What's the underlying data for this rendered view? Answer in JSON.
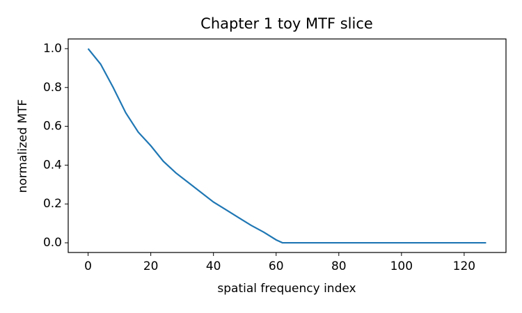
{
  "chart_data": {
    "type": "line",
    "title": "Chapter 1 toy MTF slice",
    "xlabel": "spatial frequency index",
    "ylabel": "normalized MTF",
    "x": [
      0,
      4,
      8,
      12,
      16,
      20,
      24,
      28,
      32,
      36,
      40,
      44,
      48,
      52,
      56,
      60,
      62,
      127
    ],
    "series": [
      {
        "name": "MTF",
        "color": "#1f77b4",
        "values": [
          1.0,
          0.92,
          0.8,
          0.67,
          0.57,
          0.5,
          0.42,
          0.36,
          0.31,
          0.26,
          0.21,
          0.17,
          0.13,
          0.09,
          0.055,
          0.015,
          0.0,
          0.0
        ]
      }
    ],
    "xlim": [
      -6.35,
      133.35
    ],
    "ylim": [
      -0.05,
      1.05
    ],
    "xticks": [
      0,
      20,
      40,
      60,
      80,
      100,
      120
    ],
    "yticks": [
      {
        "value": 0,
        "label": "0.0"
      },
      {
        "value": 0.2,
        "label": "0.2"
      },
      {
        "value": 0.4,
        "label": "0.4"
      },
      {
        "value": 0.6,
        "label": "0.6"
      },
      {
        "value": 0.8,
        "label": "0.8"
      },
      {
        "value": 1.0,
        "label": "1.0"
      }
    ]
  }
}
